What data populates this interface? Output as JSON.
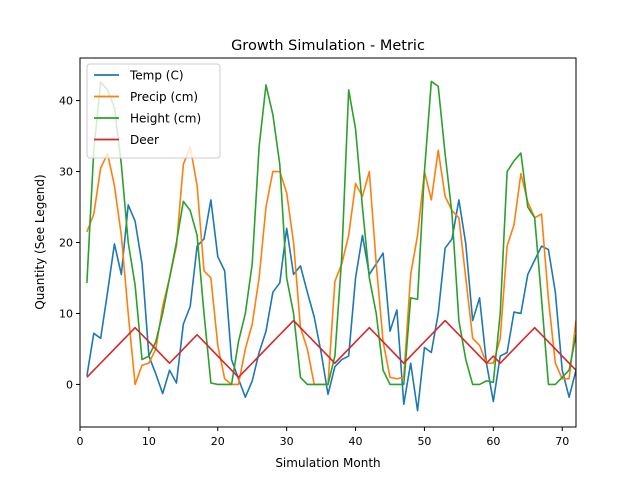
{
  "chart_data": {
    "type": "line",
    "title": "Growth Simulation - Metric",
    "xlabel": "Simulation Month",
    "ylabel": "Quantity (See Legend)",
    "xlim": [
      0,
      72
    ],
    "ylim": [
      -6,
      46
    ],
    "xticks": [
      "0",
      "10",
      "20",
      "30",
      "40",
      "50",
      "60",
      "70"
    ],
    "yticks": [
      "0",
      "10",
      "20",
      "30",
      "40"
    ],
    "grid": false,
    "legend_position": "upper-left",
    "x": [
      1,
      2,
      3,
      4,
      5,
      6,
      7,
      8,
      9,
      10,
      11,
      12,
      13,
      14,
      15,
      16,
      17,
      18,
      19,
      20,
      21,
      22,
      23,
      24,
      25,
      26,
      27,
      28,
      29,
      30,
      31,
      32,
      33,
      34,
      35,
      36,
      37,
      38,
      39,
      40,
      41,
      42,
      43,
      44,
      45,
      46,
      47,
      48,
      49,
      50,
      51,
      52,
      53,
      54,
      55,
      56,
      57,
      58,
      59,
      60,
      61,
      62,
      63,
      64,
      65,
      66,
      67,
      68,
      69,
      70,
      71,
      72
    ],
    "series": [
      {
        "name": "Temp (C)",
        "color": "#1f77b4",
        "values": [
          1.2,
          7.2,
          6.5,
          13.0,
          19.8,
          15.5,
          25.3,
          23.0,
          17.0,
          4.0,
          1.5,
          -1.3,
          2.0,
          0.2,
          8.5,
          11.0,
          19.5,
          20.5,
          26.0,
          18.0,
          16.0,
          3.5,
          0.8,
          -1.8,
          0.5,
          4.5,
          7.5,
          13.0,
          14.3,
          22.0,
          15.5,
          16.7,
          13.0,
          9.5,
          4.5,
          -1.4,
          2.5,
          3.5,
          4.0,
          15.0,
          21.0,
          15.5,
          17.0,
          18.5,
          7.5,
          10.5,
          -2.8,
          3.0,
          -3.7,
          5.2,
          4.5,
          10.0,
          19.2,
          20.5,
          26.0,
          19.8,
          9.0,
          12.2,
          3.0,
          -2.4,
          4.0,
          4.5,
          10.2,
          10.0,
          15.5,
          17.5,
          19.5,
          19.0,
          13.0,
          2.0,
          -1.8,
          2.0
        ]
      },
      {
        "name": "Precip (cm)",
        "color": "#ff7f0e",
        "values": [
          21.5,
          24.0,
          30.5,
          32.5,
          28.0,
          21.0,
          10.0,
          0.0,
          2.7,
          3.0,
          5.0,
          11.0,
          15.0,
          19.5,
          31.0,
          33.5,
          28.0,
          16.0,
          15.0,
          5.5,
          0.8,
          0.0,
          0.0,
          5.0,
          8.5,
          15.0,
          25.0,
          30.0,
          30.0,
          27.0,
          20.0,
          8.0,
          5.0,
          0.0,
          0.0,
          0.0,
          14.5,
          17.0,
          21.0,
          28.3,
          26.5,
          30.0,
          17.0,
          6.0,
          1.0,
          0.8,
          1.0,
          15.5,
          21.0,
          30.0,
          26.0,
          33.0,
          26.5,
          24.5,
          23.5,
          15.0,
          6.5,
          5.5,
          3.0,
          3.0,
          6.5,
          19.5,
          22.5,
          29.7,
          25.7,
          23.5,
          24.0,
          12.0,
          3.0,
          0.8,
          0.8,
          9.0
        ]
      },
      {
        "name": "Height (cm)",
        "color": "#2ca02c",
        "values": [
          14.3,
          33.0,
          42.6,
          41.5,
          39.0,
          31.0,
          20.0,
          14.0,
          3.5,
          4.0,
          6.0,
          10.0,
          15.0,
          20.0,
          25.8,
          24.5,
          21.0,
          10.0,
          0.2,
          0.0,
          0.0,
          0.0,
          6.0,
          10.0,
          17.0,
          33.5,
          42.2,
          38.0,
          31.0,
          15.0,
          10.0,
          1.0,
          0.0,
          0.0,
          0.0,
          0.0,
          4.0,
          18.0,
          41.5,
          36.0,
          25.0,
          15.0,
          10.0,
          2.0,
          0.0,
          0.0,
          0.0,
          12.2,
          12.0,
          30.0,
          42.7,
          42.0,
          32.5,
          24.0,
          9.0,
          3.5,
          0.0,
          0.0,
          0.5,
          0.3,
          10.0,
          30.0,
          31.5,
          32.6,
          25.0,
          23.5,
          12.0,
          0.0,
          0.0,
          1.0,
          2.0,
          7.0
        ]
      },
      {
        "name": "Deer",
        "color": "#d62728",
        "values": [
          1,
          2,
          3,
          4,
          5,
          6,
          7,
          8,
          7,
          6,
          5,
          4,
          3,
          4,
          5,
          6,
          7,
          6,
          5,
          4,
          3,
          2,
          1,
          2,
          3,
          4,
          5,
          6,
          7,
          8,
          9,
          8,
          7,
          6,
          5,
          4,
          3,
          4,
          5,
          6,
          7,
          8,
          7,
          6,
          5,
          4,
          3,
          4,
          5,
          6,
          7,
          8,
          9,
          8,
          7,
          6,
          5,
          4,
          3,
          4,
          3,
          4,
          5,
          6,
          7,
          8,
          7,
          6,
          5,
          4,
          3,
          2
        ]
      }
    ]
  }
}
